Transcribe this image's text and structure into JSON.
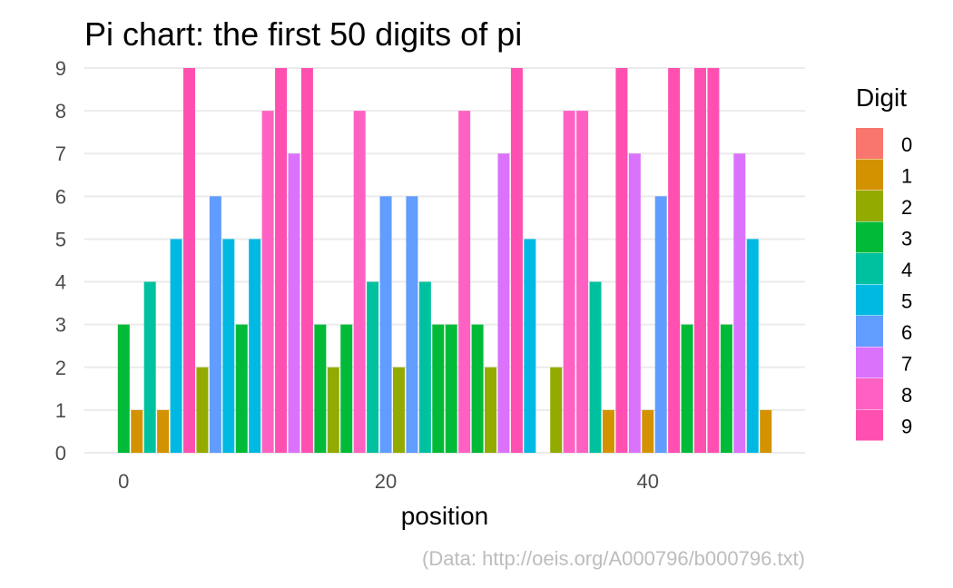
{
  "chart_data": {
    "type": "bar",
    "title": "Pi chart: the first 50 digits of pi",
    "xlabel": "position",
    "ylabel": "",
    "caption": "(Data: http://oeis.org/A000796/b000796.txt)",
    "x_ticks": [
      0,
      20,
      40
    ],
    "y_ticks": [
      0,
      1,
      2,
      3,
      4,
      5,
      6,
      7,
      8,
      9
    ],
    "xlim": [
      -3,
      52
    ],
    "ylim": [
      0,
      9
    ],
    "grid": true,
    "legend": {
      "title": "Digit",
      "placement": "right",
      "entries": [
        "0",
        "1",
        "2",
        "3",
        "4",
        "5",
        "6",
        "7",
        "8",
        "9"
      ]
    },
    "colors": {
      "0": "#F8766D",
      "1": "#D39200",
      "2": "#93AA00",
      "3": "#00BA38",
      "4": "#00C19F",
      "5": "#00B9E3",
      "6": "#619CFF",
      "7": "#DB72FB",
      "8": "#FF61C3",
      "9": "#FF4FB0"
    },
    "x": [
      0,
      1,
      2,
      3,
      4,
      5,
      6,
      7,
      8,
      9,
      10,
      11,
      12,
      13,
      14,
      15,
      16,
      17,
      18,
      19,
      20,
      21,
      22,
      23,
      24,
      25,
      26,
      27,
      28,
      29,
      30,
      31,
      32,
      33,
      34,
      35,
      36,
      37,
      38,
      39,
      40,
      41,
      42,
      43,
      44,
      45,
      46,
      47,
      48,
      49
    ],
    "values": [
      3,
      1,
      4,
      1,
      5,
      9,
      2,
      6,
      5,
      3,
      5,
      8,
      9,
      7,
      9,
      3,
      2,
      3,
      8,
      4,
      6,
      2,
      6,
      4,
      3,
      3,
      8,
      3,
      2,
      7,
      9,
      5,
      0,
      2,
      8,
      8,
      4,
      1,
      9,
      7,
      1,
      6,
      9,
      3,
      9,
      9,
      3,
      7,
      5,
      1
    ]
  }
}
